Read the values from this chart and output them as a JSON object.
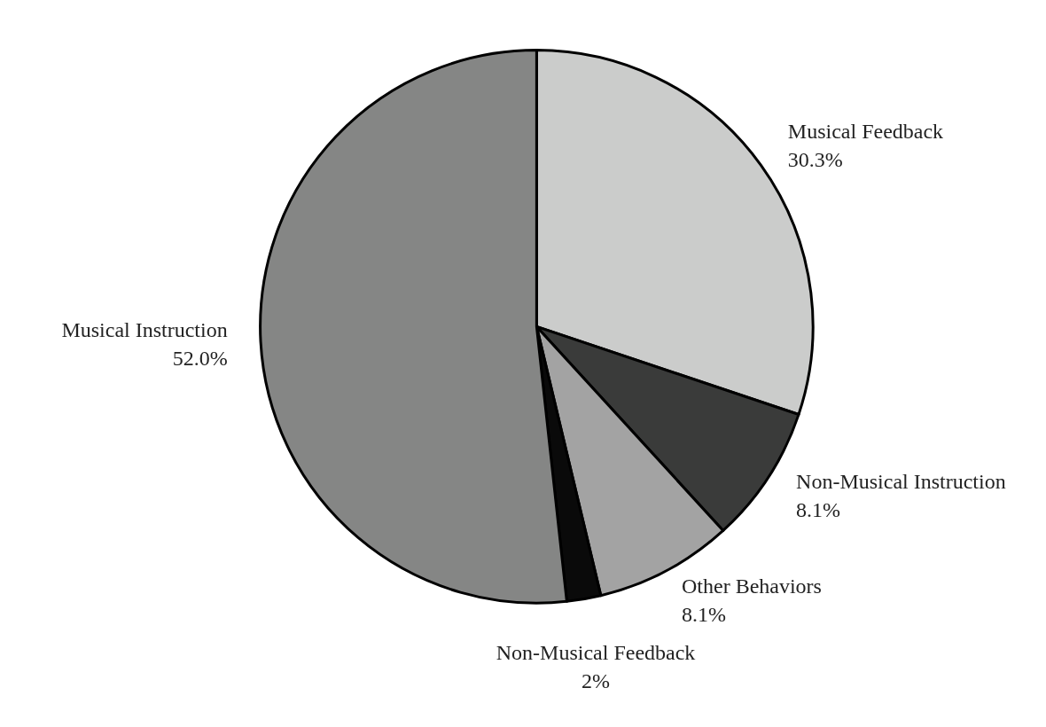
{
  "chart_data": {
    "type": "pie",
    "categories": [
      "Musical Feedback",
      "Non-Musical Instruction",
      "Other Behaviors",
      "Non-Musical Feedback",
      "Musical Instruction"
    ],
    "values": [
      30.3,
      8.1,
      8.1,
      2,
      52.0
    ],
    "value_labels": [
      "30.3%",
      "8.1%",
      "8.1%",
      "2%",
      "52.0%"
    ],
    "colors": [
      "#cbcccb",
      "#3a3b3a",
      "#a3a3a3",
      "#0a0a0a",
      "#858685"
    ],
    "legend": false
  }
}
